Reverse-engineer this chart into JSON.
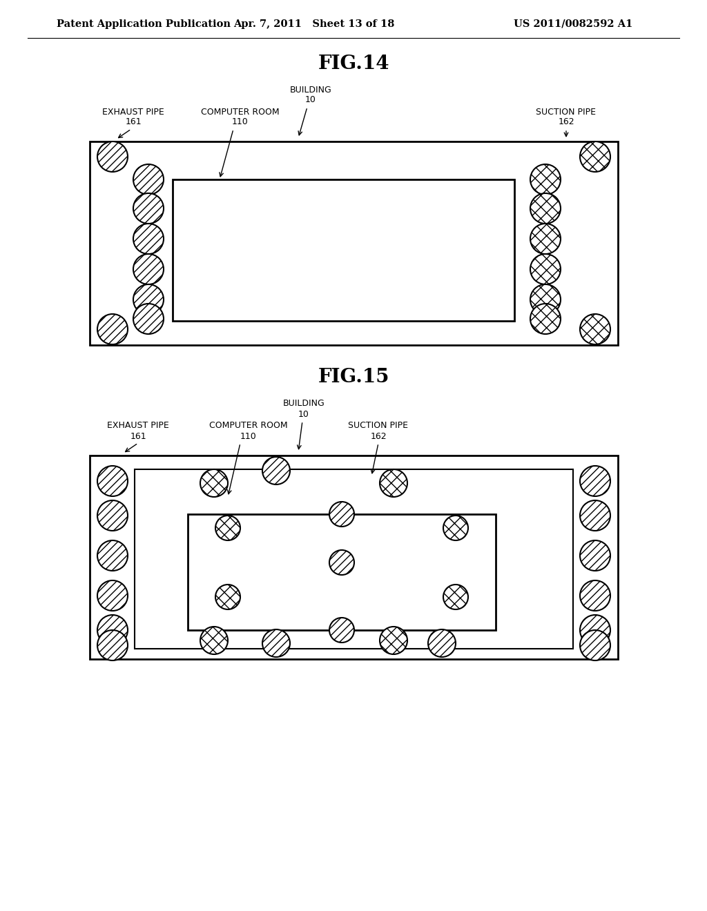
{
  "background_color": "#ffffff",
  "header_left": "Patent Application Publication",
  "header_center": "Apr. 7, 2011   Sheet 13 of 18",
  "header_right": "US 2011/0082592 A1",
  "fig14_title": "FIG.14",
  "fig15_title": "FIG.15"
}
